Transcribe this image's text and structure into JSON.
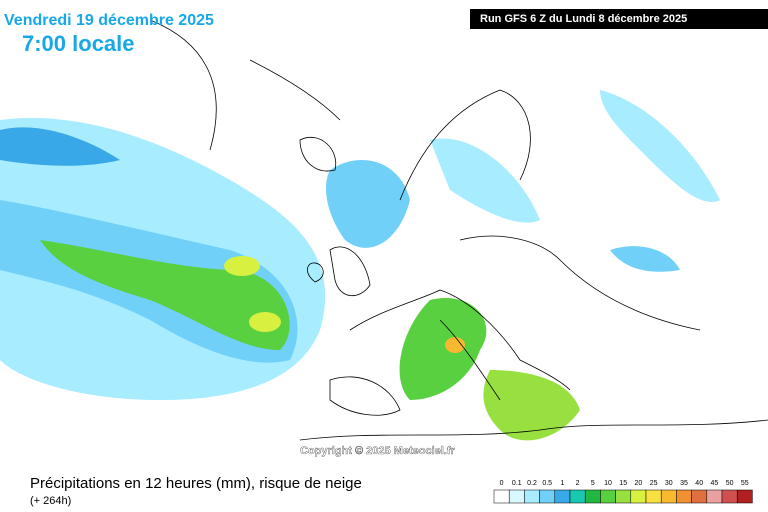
{
  "header": {
    "date": "Vendredi 19 décembre 2025",
    "time": "7:00 locale",
    "run": "Run GFS 6 Z du Lundi 8 décembre 2025"
  },
  "map": {
    "copyright": "Copyright © 2025 Meteociel.fr"
  },
  "footer": {
    "title": "Précipitations en 12 heures (mm), risque de neige",
    "lead": "(+ 264h)"
  },
  "legend": {
    "labels": [
      "0",
      "0.1",
      "0.2",
      "0.5",
      "1",
      "2",
      "5",
      "10",
      "15",
      "20",
      "25",
      "30",
      "35",
      "40",
      "45",
      "50",
      "55"
    ],
    "colors": [
      "#ffffff",
      "#d8f8ff",
      "#a8ecff",
      "#70d0f8",
      "#38a8e8",
      "#18c8b0",
      "#20b840",
      "#58d040",
      "#98e040",
      "#d8f040",
      "#f8e040",
      "#f8b830",
      "#f09030",
      "#e07040",
      "#e8a0a0",
      "#d05050",
      "#b02020"
    ]
  }
}
